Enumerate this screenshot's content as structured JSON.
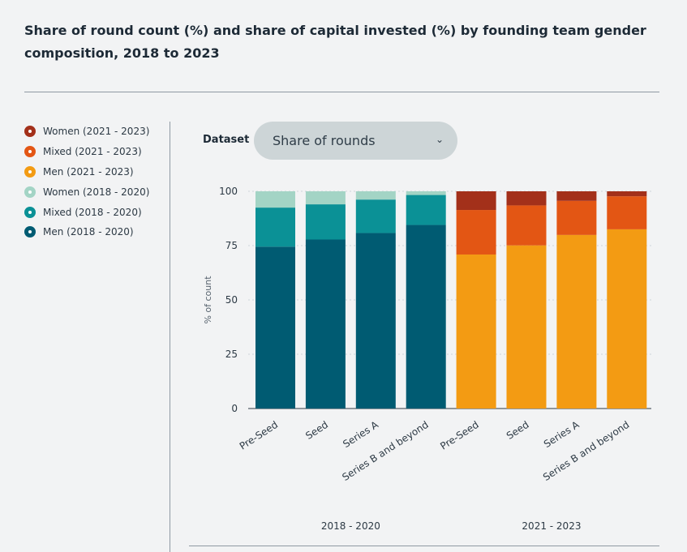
{
  "title": "Share of round count (%) and share of capital invested (%) by founding team gender composition, 2018 to 2023",
  "dataset": {
    "label": "Dataset",
    "selected": "Share of rounds",
    "chevron_icon": "chevron-down-icon"
  },
  "legend": [
    {
      "label": "Women (2021 - 2023)",
      "color": "#a3301a"
    },
    {
      "label": "Mixed (2021 - 2023)",
      "color": "#e35614"
    },
    {
      "label": "Men (2021 - 2023)",
      "color": "#f39b13"
    },
    {
      "label": "Women (2018 - 2020)",
      "color": "#a3d4c5"
    },
    {
      "label": "Mixed (2018 - 2020)",
      "color": "#0b9196"
    },
    {
      "label": "Men (2018 - 2020)",
      "color": "#005b72"
    }
  ],
  "chart_data": {
    "type": "bar",
    "stacked": true,
    "ylabel": "% of count",
    "ylim": [
      0,
      100
    ],
    "yticks": [
      0,
      25,
      50,
      75,
      100
    ],
    "groups": [
      {
        "label": "2018 - 2020",
        "categories": [
          "Pre-Seed",
          "Seed",
          "Series A",
          "Series B and beyond"
        ],
        "series": [
          {
            "name": "Men (2018 - 2020)",
            "color": "#005b72",
            "values": [
              74.5,
              77.8,
              80.8,
              84.5
            ]
          },
          {
            "name": "Mixed (2018 - 2020)",
            "color": "#0b9196",
            "values": [
              18.0,
              16.2,
              15.4,
              13.8
            ]
          },
          {
            "name": "Women (2018 - 2020)",
            "color": "#a3d4c5",
            "values": [
              7.5,
              6.0,
              3.8,
              1.7
            ]
          }
        ]
      },
      {
        "label": "2021 - 2023",
        "categories": [
          "Pre-Seed",
          "Seed",
          "Series A",
          "Series B and beyond"
        ],
        "series": [
          {
            "name": "Men (2021 - 2023)",
            "color": "#f39b13",
            "values": [
              70.9,
              75.1,
              79.9,
              82.5
            ]
          },
          {
            "name": "Mixed (2021 - 2023)",
            "color": "#e35614",
            "values": [
              20.5,
              18.4,
              15.7,
              15.2
            ]
          },
          {
            "name": "Women (2021 - 2023)",
            "color": "#a3301a",
            "values": [
              8.6,
              6.5,
              4.4,
              2.3
            ]
          }
        ]
      }
    ]
  }
}
